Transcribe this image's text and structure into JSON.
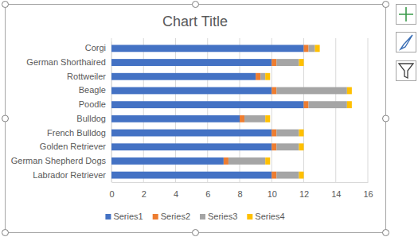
{
  "chart_data": {
    "type": "bar",
    "title": "Chart Title",
    "orientation": "horizontal",
    "stacked": true,
    "grid": true,
    "legend": "bottom",
    "categories": [
      "Labrador Retriever",
      "German Shepherd Dogs",
      "Golden Retriever",
      "French Bulldog",
      "Bulldog",
      "Poodle",
      "Beagle",
      "Rottweiler",
      "German Shorthaired",
      "Corgi"
    ],
    "series": [
      {
        "name": "Series1",
        "color": "#4472c4",
        "values": [
          10,
          7,
          10,
          10,
          8,
          12,
          10,
          9,
          10,
          12
        ]
      },
      {
        "name": "Series2",
        "color": "#ed7d31",
        "values": [
          0.3,
          0.3,
          0.3,
          0.3,
          0.3,
          0.3,
          0.3,
          0.3,
          0.3,
          0.3
        ]
      },
      {
        "name": "Series3",
        "color": "#a5a5a5",
        "values": [
          1.4,
          2.3,
          1.4,
          1.4,
          1.3,
          2.4,
          4.4,
          0.3,
          1.4,
          0.4
        ]
      },
      {
        "name": "Series4",
        "color": "#ffc000",
        "values": [
          0.3,
          0.3,
          0.3,
          0.3,
          0.3,
          0.3,
          0.3,
          0.3,
          0.3,
          0.3
        ]
      }
    ],
    "xlim": [
      0,
      16
    ],
    "xticks": [
      0,
      2,
      4,
      6,
      8,
      10,
      12,
      14,
      16
    ]
  }
}
